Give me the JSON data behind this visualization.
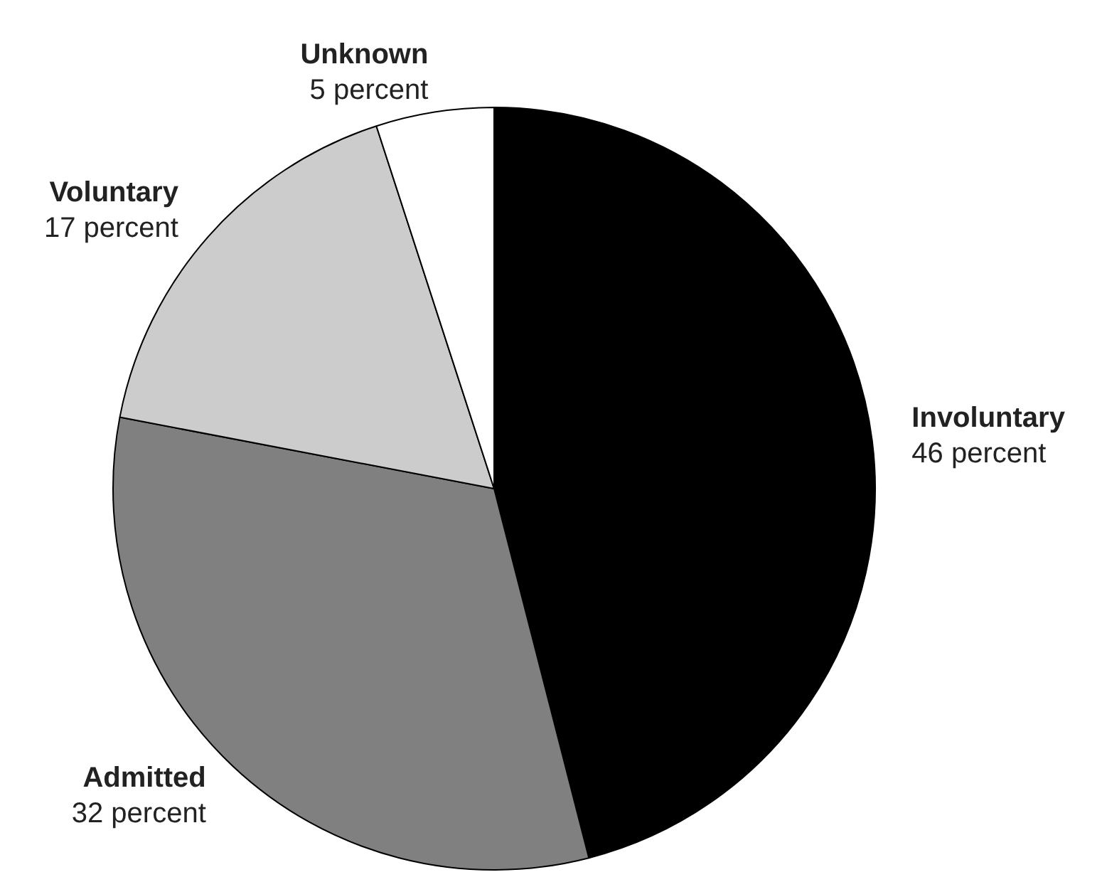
{
  "chart_data": {
    "type": "pie",
    "categories": [
      "Involuntary",
      "Admitted",
      "Voluntary",
      "Unknown"
    ],
    "values": [
      46,
      32,
      17,
      5
    ],
    "colors": [
      "#000000",
      "#808080",
      "#cccccc",
      "#ffffff"
    ],
    "value_labels": [
      "46 percent",
      "32 percent",
      "17 percent",
      "5 percent"
    ],
    "legend": false
  }
}
